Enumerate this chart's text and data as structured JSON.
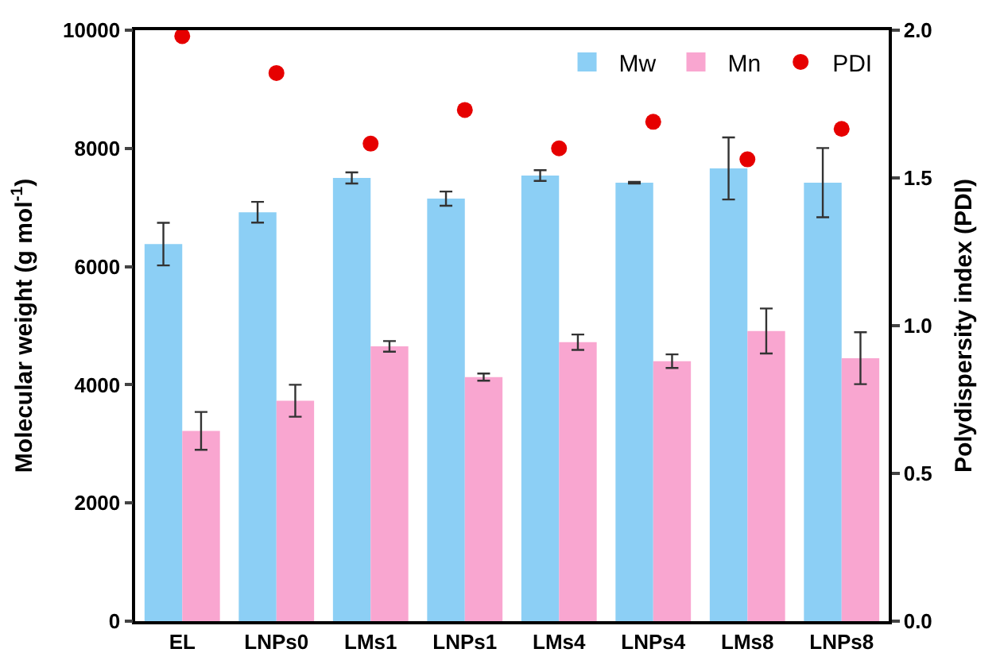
{
  "chart_data": {
    "type": "bar",
    "categories": [
      "EL",
      "LNPs0",
      "LMs1",
      "LNPs1",
      "LMs4",
      "LNPs4",
      "LMs8",
      "LNPs8"
    ],
    "ylabel": "Molecular weight (g mol$^{-1}$)",
    "y2label": "Polydispersity index (PDI)",
    "ylim": [
      0,
      10000
    ],
    "yticks": [
      0,
      2000,
      4000,
      6000,
      8000,
      10000
    ],
    "y2lim": [
      0,
      2.0
    ],
    "y2ticks": [
      {
        "value": 0,
        "label": "0.0"
      },
      {
        "value": 0.5,
        "label": "0.5"
      },
      {
        "value": 1,
        "label": "1.0"
      },
      {
        "value": 1.5,
        "label": "1.5"
      },
      {
        "value": 2,
        "label": "2.0"
      }
    ],
    "legend": "top right",
    "series": [
      {
        "name": "Mw",
        "color": "#8ccff5",
        "values": [
          6380,
          6920,
          7500,
          7150,
          7540,
          7420,
          7660,
          7420
        ],
        "errors": [
          360,
          175,
          95,
          120,
          90,
          15,
          525,
          585
        ]
      },
      {
        "name": "Mn",
        "color": "#f9a6d0",
        "values": [
          3220,
          3730,
          4650,
          4130,
          4720,
          4400,
          4910,
          4450
        ],
        "errors": [
          320,
          270,
          90,
          60,
          130,
          115,
          380,
          440
        ]
      },
      {
        "name": "PDI",
        "type": "scatter",
        "axis": "y2",
        "marker": "circle",
        "color": "#e60000",
        "values": [
          1.98,
          1.855,
          1.616,
          1.73,
          1.6,
          1.69,
          1.563,
          1.666
        ]
      }
    ]
  }
}
